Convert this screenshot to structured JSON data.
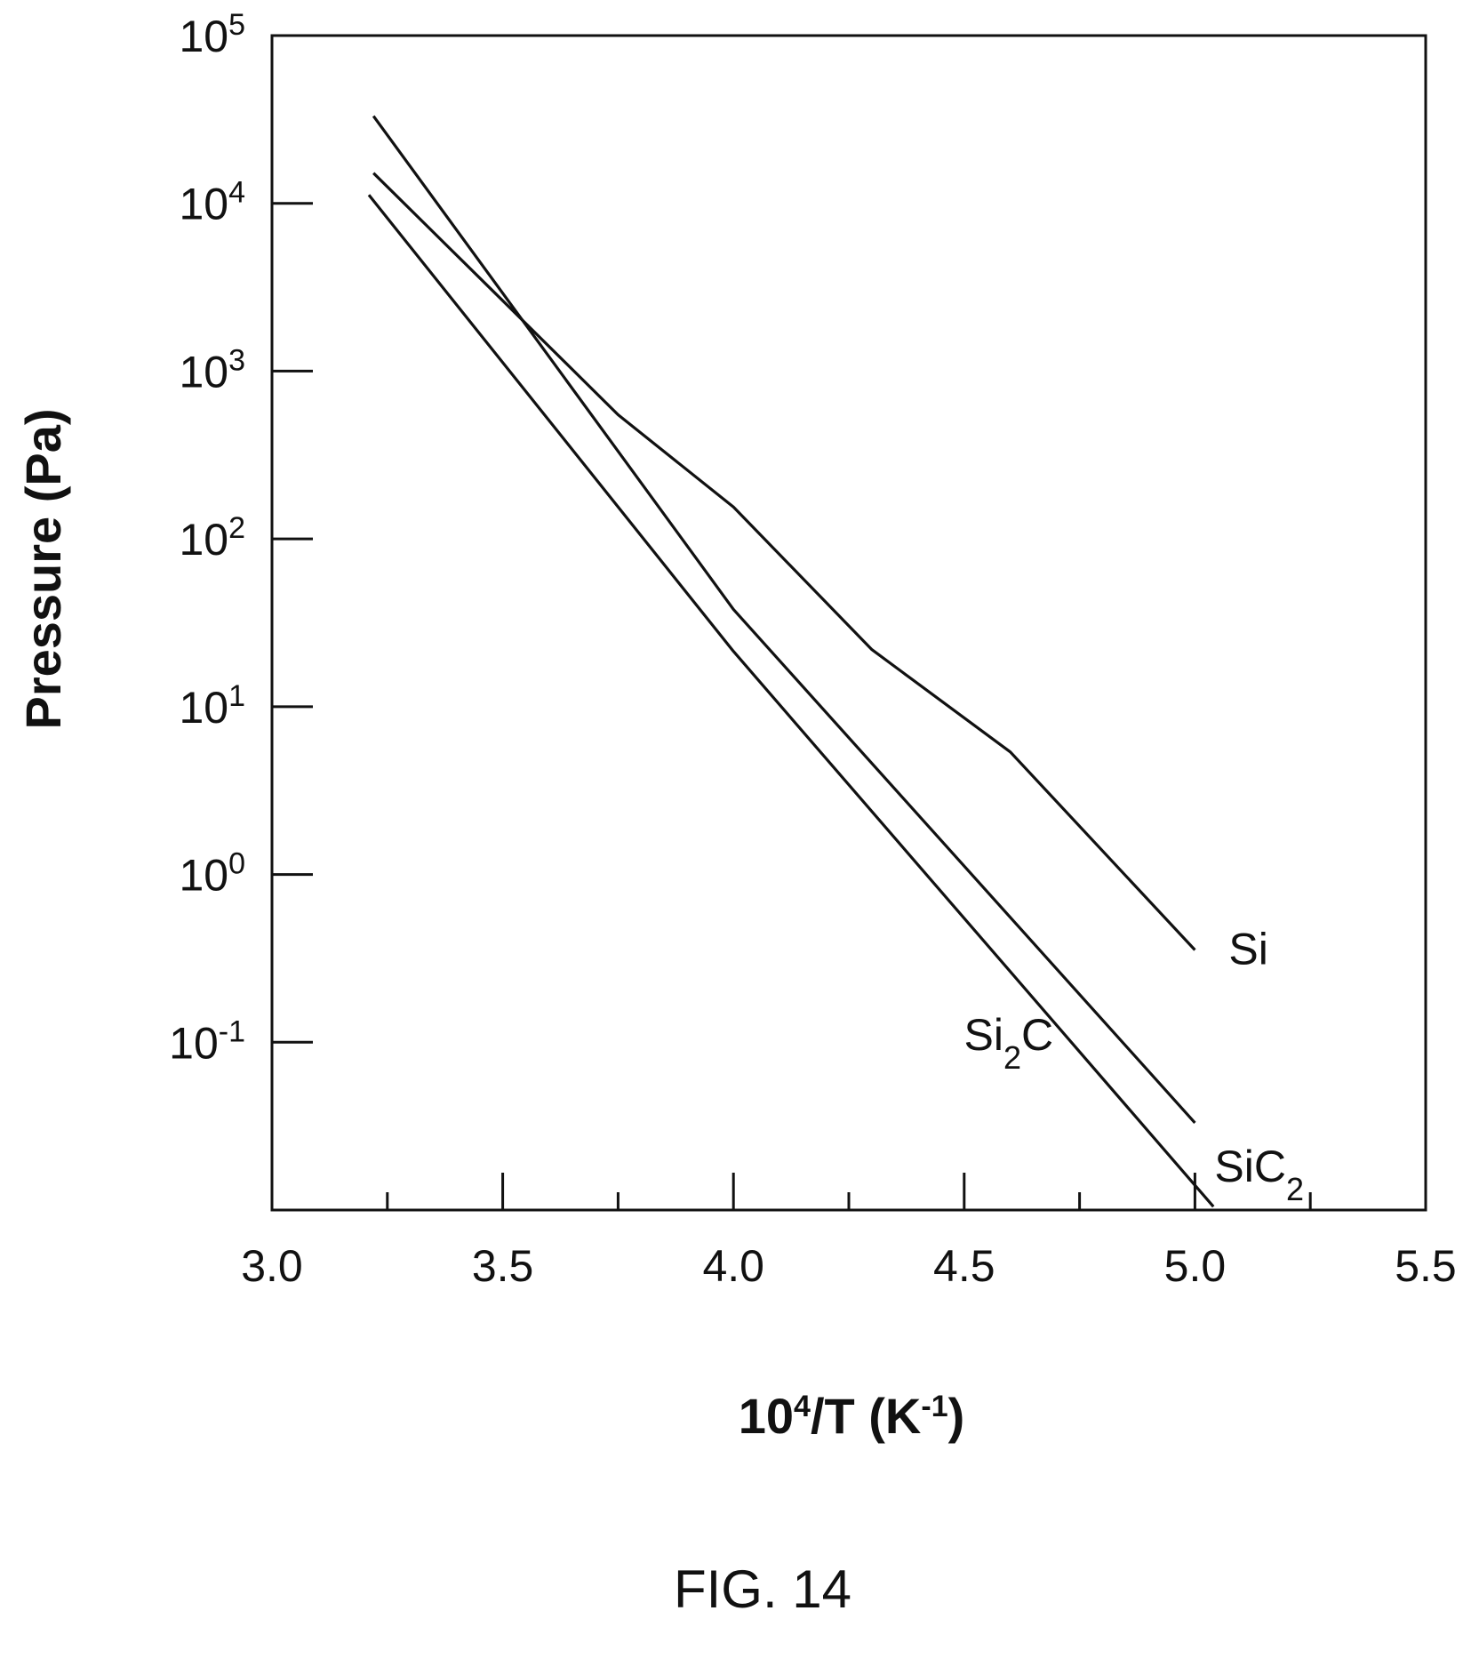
{
  "figure": {
    "caption": "FIG. 14"
  },
  "chart_data": {
    "type": "line",
    "title": "",
    "xlabel": {
      "base": "10",
      "exp": "4",
      "rest": "/T (K",
      "exp2": "-1",
      "close": ")"
    },
    "ylabel": "Pressure (Pa)",
    "xlim": [
      3.0,
      5.5
    ],
    "ylim_log10": [
      -2,
      5
    ],
    "y_scale": "log",
    "grid": false,
    "x_ticks": [
      "3.0",
      "3.5",
      "4.0",
      "4.5",
      "5.0",
      "5.5"
    ],
    "x_tick_values": [
      3.0,
      3.5,
      4.0,
      4.5,
      5.0,
      5.5
    ],
    "x_minor_ticks": [
      3.25,
      3.75,
      4.25,
      4.75,
      5.25
    ],
    "y_ticks": [
      {
        "base": "10",
        "exp": "5",
        "log": 5
      },
      {
        "base": "10",
        "exp": "4",
        "log": 4
      },
      {
        "base": "10",
        "exp": "3",
        "log": 3
      },
      {
        "base": "10",
        "exp": "2",
        "log": 2
      },
      {
        "base": "10",
        "exp": "1",
        "log": 1
      },
      {
        "base": "10",
        "exp": "0",
        "log": 0
      },
      {
        "base": "10",
        "exp": "-1",
        "log": -1
      }
    ],
    "series": [
      {
        "name": "Si",
        "label": {
          "main": "Si",
          "sub": "",
          "tail": ""
        },
        "x": [
          3.22,
          3.5,
          3.75,
          4.0,
          4.3,
          4.6,
          5.0
        ],
        "log10_y": [
          4.18,
          3.42,
          2.74,
          2.19,
          1.34,
          0.73,
          -0.45
        ]
      },
      {
        "name": "SiC2",
        "label": {
          "main": "SiC",
          "sub": "2",
          "tail": ""
        },
        "x": [
          3.22,
          4.0,
          5.0
        ],
        "log10_y": [
          4.52,
          1.58,
          -1.48
        ]
      },
      {
        "name": "Si2C",
        "label": {
          "main": "Si",
          "sub": "2",
          "tail": "C"
        },
        "x": [
          3.21,
          4.0,
          5.04
        ],
        "log10_y": [
          4.05,
          1.33,
          -1.98
        ]
      }
    ]
  }
}
